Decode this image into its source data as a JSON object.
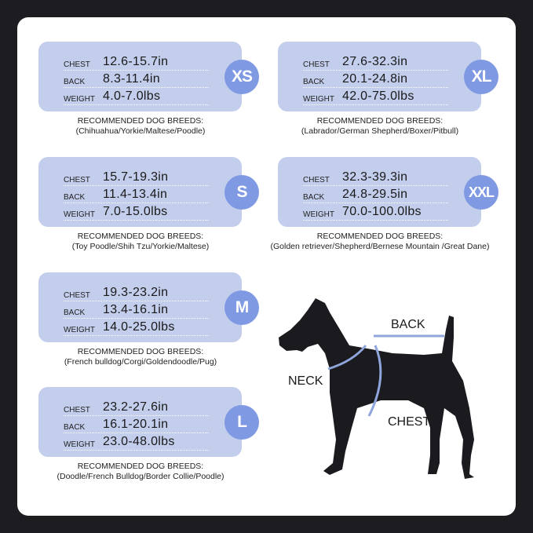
{
  "row_labels": {
    "chest": "CHEST",
    "back": "BACK",
    "weight": "WEIGHT"
  },
  "breeds_heading": "RECOMMENDED DOG BREEDS:",
  "sizes": [
    {
      "size": "XS",
      "chest": "12.6-15.7in",
      "back": "8.3-11.4in",
      "weight": "4.0-7.0lbs",
      "breeds": "(Chihuahua/Yorkie/Maltese/Poodle)"
    },
    {
      "size": "XL",
      "chest": "27.6-32.3in",
      "back": "20.1-24.8in",
      "weight": "42.0-75.0lbs",
      "breeds": "(Labrador/German Shepherd/Boxer/Pitbull)"
    },
    {
      "size": "S",
      "chest": "15.7-19.3in",
      "back": "11.4-13.4in",
      "weight": "7.0-15.0lbs",
      "breeds": "(Toy Poodle/Shih Tzu/Yorkie/Maltese)"
    },
    {
      "size": "XXL",
      "chest": "32.3-39.3in",
      "back": "24.8-29.5in",
      "weight": "70.0-100.0lbs",
      "breeds": "(Golden retriever/Shepherd/Bernese Mountain /Great Dane)"
    },
    {
      "size": "M",
      "chest": "19.3-23.2in",
      "back": "13.4-16.1in",
      "weight": "14.0-25.0lbs",
      "breeds": "(French bulldog/Corgi/Goldendoodle/Pug)"
    },
    {
      "size": "L",
      "chest": "23.2-27.6in",
      "back": "16.1-20.1in",
      "weight": "23.0-48.0lbs",
      "breeds": "(Doodle/French Bulldog/Border Collie/Poodle)"
    }
  ],
  "diagram": {
    "back": "BACK",
    "neck": "NECK",
    "chest": "CHEST"
  },
  "colors": {
    "card": "#c3cdec",
    "badge": "#7f99e3",
    "measure_line": "#8fa5dc",
    "background": "#1d1d21"
  }
}
